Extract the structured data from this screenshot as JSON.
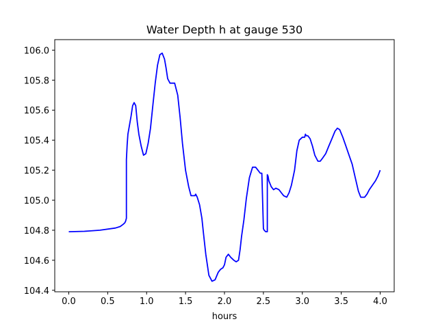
{
  "chart_data": {
    "type": "line",
    "title": "Water Depth h at gauge 530",
    "xlabel": "hours",
    "ylabel": "",
    "xlim": [
      -0.18,
      4.18
    ],
    "ylim": [
      104.39,
      106.07
    ],
    "xticks": [
      0.0,
      0.5,
      1.0,
      1.5,
      2.0,
      2.5,
      3.0,
      3.5,
      4.0
    ],
    "xtick_labels": [
      "0.0",
      "0.5",
      "1.0",
      "1.5",
      "2.0",
      "2.5",
      "3.0",
      "3.5",
      "4.0"
    ],
    "yticks": [
      104.4,
      104.6,
      104.8,
      105.0,
      105.2,
      105.4,
      105.6,
      105.8,
      106.0
    ],
    "ytick_labels": [
      "104.4",
      "104.6",
      "104.8",
      "105.0",
      "105.2",
      "105.4",
      "105.6",
      "105.8",
      "106.0"
    ],
    "grid": false,
    "legend": "none",
    "series": [
      {
        "color": "#0000ff",
        "x": [
          0.0,
          0.2,
          0.4,
          0.6,
          0.66,
          0.7,
          0.72,
          0.73,
          0.74,
          0.74,
          0.75,
          0.76,
          0.78,
          0.8,
          0.82,
          0.84,
          0.86,
          0.88,
          0.9,
          0.93,
          0.96,
          0.99,
          1.02,
          1.05,
          1.08,
          1.11,
          1.14,
          1.17,
          1.2,
          1.23,
          1.25,
          1.27,
          1.3,
          1.33,
          1.36,
          1.4,
          1.43,
          1.46,
          1.5,
          1.54,
          1.57,
          1.6,
          1.62,
          1.63,
          1.65,
          1.68,
          1.71,
          1.73,
          1.76,
          1.8,
          1.84,
          1.88,
          1.92,
          1.95,
          1.98,
          2.0,
          2.02,
          2.05,
          2.08,
          2.1,
          2.12,
          2.15,
          2.18,
          2.2,
          2.22,
          2.25,
          2.28,
          2.32,
          2.36,
          2.4,
          2.43,
          2.46,
          2.48,
          2.5,
          2.51,
          2.51,
          2.53,
          2.55,
          2.55,
          2.56,
          2.57,
          2.6,
          2.63,
          2.66,
          2.7,
          2.73,
          2.76,
          2.8,
          2.83,
          2.86,
          2.9,
          2.93,
          2.96,
          3.0,
          3.03,
          3.04,
          3.05,
          3.07,
          3.1,
          3.13,
          3.16,
          3.2,
          3.23,
          3.26,
          3.3,
          3.34,
          3.38,
          3.42,
          3.45,
          3.48,
          3.52,
          3.56,
          3.6,
          3.64,
          3.68,
          3.72,
          3.75,
          3.78,
          3.8,
          3.83,
          3.86,
          3.9,
          3.94,
          3.97,
          4.0
        ],
        "y": [
          104.79,
          104.793,
          104.8,
          104.815,
          104.825,
          104.84,
          104.85,
          104.86,
          104.88,
          105.27,
          105.37,
          105.44,
          105.5,
          105.56,
          105.63,
          105.65,
          105.63,
          105.52,
          105.44,
          105.36,
          105.3,
          105.31,
          105.38,
          105.48,
          105.63,
          105.78,
          105.9,
          105.97,
          105.98,
          105.94,
          105.88,
          105.81,
          105.78,
          105.78,
          105.78,
          105.7,
          105.55,
          105.38,
          105.2,
          105.09,
          105.03,
          105.03,
          105.03,
          105.04,
          105.02,
          104.97,
          104.88,
          104.78,
          104.64,
          104.5,
          104.46,
          104.47,
          104.52,
          104.54,
          104.55,
          104.57,
          104.62,
          104.64,
          104.62,
          104.61,
          104.6,
          104.59,
          104.6,
          104.67,
          104.76,
          104.87,
          105.01,
          105.15,
          105.22,
          105.22,
          105.2,
          105.18,
          105.18,
          104.81,
          104.8,
          104.8,
          104.79,
          104.79,
          105.17,
          105.16,
          105.13,
          105.09,
          105.07,
          105.08,
          105.07,
          105.05,
          105.03,
          105.02,
          105.05,
          105.1,
          105.2,
          105.33,
          105.4,
          105.42,
          105.42,
          105.44,
          105.43,
          105.43,
          105.41,
          105.36,
          105.3,
          105.26,
          105.26,
          105.28,
          105.31,
          105.36,
          105.41,
          105.46,
          105.48,
          105.47,
          105.42,
          105.36,
          105.3,
          105.24,
          105.15,
          105.06,
          105.02,
          105.02,
          105.02,
          105.04,
          105.07,
          105.1,
          105.13,
          105.16,
          105.2
        ]
      }
    ]
  }
}
